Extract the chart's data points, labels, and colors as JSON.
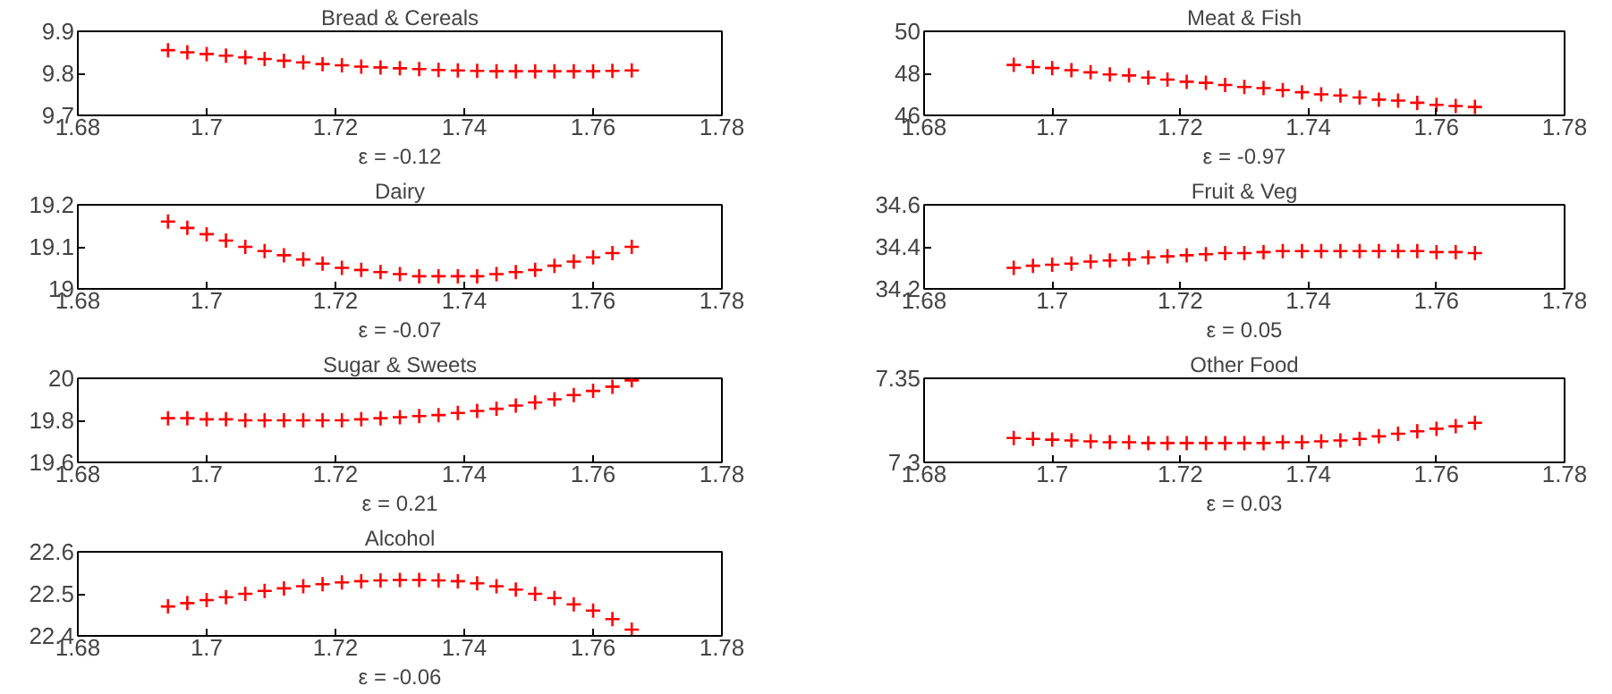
{
  "chart_data": [
    {
      "type": "scatter",
      "title": "Bread & Cereals",
      "xlabel": "ε = -0.12",
      "color": "#ff0000",
      "marker": "cross",
      "grid": false,
      "xlim": [
        1.68,
        1.78
      ],
      "xticks": [
        1.68,
        1.7,
        1.72,
        1.74,
        1.76,
        1.78
      ],
      "ylim": [
        9.7,
        9.9
      ],
      "yticks": [
        9.7,
        9.8,
        9.9
      ],
      "x": [
        1.694,
        1.697,
        1.7,
        1.703,
        1.706,
        1.709,
        1.712,
        1.715,
        1.718,
        1.721,
        1.724,
        1.727,
        1.73,
        1.733,
        1.736,
        1.739,
        1.742,
        1.745,
        1.748,
        1.751,
        1.754,
        1.757,
        1.76,
        1.763,
        1.766
      ],
      "values": [
        9.855,
        9.85,
        9.846,
        9.842,
        9.838,
        9.834,
        9.83,
        9.826,
        9.822,
        9.819,
        9.816,
        9.814,
        9.812,
        9.81,
        9.808,
        9.807,
        9.806,
        9.805,
        9.805,
        9.805,
        9.805,
        9.805,
        9.805,
        9.806,
        9.807
      ]
    },
    {
      "type": "scatter",
      "title": "Meat & Fish",
      "xlabel": "ε = -0.97",
      "color": "#ff0000",
      "marker": "cross",
      "grid": false,
      "xlim": [
        1.68,
        1.78
      ],
      "xticks": [
        1.68,
        1.7,
        1.72,
        1.74,
        1.76,
        1.78
      ],
      "ylim": [
        46,
        50
      ],
      "yticks": [
        46,
        48,
        50
      ],
      "x": [
        1.694,
        1.697,
        1.7,
        1.703,
        1.706,
        1.709,
        1.712,
        1.715,
        1.718,
        1.721,
        1.724,
        1.727,
        1.73,
        1.733,
        1.736,
        1.739,
        1.742,
        1.745,
        1.748,
        1.751,
        1.754,
        1.757,
        1.76,
        1.763,
        1.766
      ],
      "values": [
        48.4,
        48.3,
        48.25,
        48.15,
        48.05,
        47.95,
        47.9,
        47.8,
        47.7,
        47.6,
        47.55,
        47.45,
        47.35,
        47.3,
        47.2,
        47.1,
        47.0,
        46.95,
        46.85,
        46.75,
        46.7,
        46.6,
        46.5,
        46.45,
        46.4
      ]
    },
    {
      "type": "scatter",
      "title": "Dairy",
      "xlabel": "ε = -0.07",
      "color": "#ff0000",
      "marker": "cross",
      "grid": false,
      "xlim": [
        1.68,
        1.78
      ],
      "xticks": [
        1.68,
        1.7,
        1.72,
        1.74,
        1.76,
        1.78
      ],
      "ylim": [
        19,
        19.2
      ],
      "yticks": [
        19,
        19.1,
        19.2
      ],
      "x": [
        1.694,
        1.697,
        1.7,
        1.703,
        1.706,
        1.709,
        1.712,
        1.715,
        1.718,
        1.721,
        1.724,
        1.727,
        1.73,
        1.733,
        1.736,
        1.739,
        1.742,
        1.745,
        1.748,
        1.751,
        1.754,
        1.757,
        1.76,
        1.763,
        1.766
      ],
      "values": [
        19.16,
        19.145,
        19.13,
        19.115,
        19.1,
        19.09,
        19.08,
        19.07,
        19.06,
        19.05,
        19.045,
        19.04,
        19.035,
        19.03,
        19.03,
        19.03,
        19.03,
        19.035,
        19.04,
        19.045,
        19.055,
        19.065,
        19.075,
        19.085,
        19.1
      ]
    },
    {
      "type": "scatter",
      "title": "Fruit & Veg",
      "xlabel": "ε = 0.05",
      "color": "#ff0000",
      "marker": "cross",
      "grid": false,
      "xlim": [
        1.68,
        1.78
      ],
      "xticks": [
        1.68,
        1.7,
        1.72,
        1.74,
        1.76,
        1.78
      ],
      "ylim": [
        34.2,
        34.6
      ],
      "yticks": [
        34.2,
        34.4,
        34.6
      ],
      "x": [
        1.694,
        1.697,
        1.7,
        1.703,
        1.706,
        1.709,
        1.712,
        1.715,
        1.718,
        1.721,
        1.724,
        1.727,
        1.73,
        1.733,
        1.736,
        1.739,
        1.742,
        1.745,
        1.748,
        1.751,
        1.754,
        1.757,
        1.76,
        1.763,
        1.766
      ],
      "values": [
        34.3,
        34.31,
        34.315,
        34.32,
        34.33,
        34.335,
        34.34,
        34.35,
        34.355,
        34.36,
        34.365,
        34.37,
        34.37,
        34.375,
        34.38,
        34.38,
        34.38,
        34.38,
        34.38,
        34.38,
        34.38,
        34.38,
        34.375,
        34.375,
        34.37
      ]
    },
    {
      "type": "scatter",
      "title": "Sugar & Sweets",
      "xlabel": "ε = 0.21",
      "color": "#ff0000",
      "marker": "cross",
      "grid": false,
      "xlim": [
        1.68,
        1.78
      ],
      "xticks": [
        1.68,
        1.7,
        1.72,
        1.74,
        1.76,
        1.78
      ],
      "ylim": [
        19.6,
        20
      ],
      "yticks": [
        19.6,
        19.8,
        20
      ],
      "x": [
        1.694,
        1.697,
        1.7,
        1.703,
        1.706,
        1.709,
        1.712,
        1.715,
        1.718,
        1.721,
        1.724,
        1.727,
        1.73,
        1.733,
        1.736,
        1.739,
        1.742,
        1.745,
        1.748,
        1.751,
        1.754,
        1.757,
        1.76,
        1.763,
        1.766
      ],
      "values": [
        19.81,
        19.81,
        19.805,
        19.805,
        19.8,
        19.8,
        19.8,
        19.8,
        19.8,
        19.8,
        19.805,
        19.81,
        19.815,
        19.82,
        19.825,
        19.835,
        19.845,
        19.855,
        19.87,
        19.885,
        19.9,
        19.92,
        19.94,
        19.96,
        19.99
      ]
    },
    {
      "type": "scatter",
      "title": "Other Food",
      "xlabel": "ε = 0.03",
      "color": "#ff0000",
      "marker": "cross",
      "grid": false,
      "xlim": [
        1.68,
        1.78
      ],
      "xticks": [
        1.68,
        1.7,
        1.72,
        1.74,
        1.76,
        1.78
      ],
      "ylim": [
        7.3,
        7.35
      ],
      "yticks": [
        7.3,
        7.35
      ],
      "x": [
        1.694,
        1.697,
        1.7,
        1.703,
        1.706,
        1.709,
        1.712,
        1.715,
        1.718,
        1.721,
        1.724,
        1.727,
        1.73,
        1.733,
        1.736,
        1.739,
        1.742,
        1.745,
        1.748,
        1.751,
        1.754,
        1.757,
        1.76,
        1.763,
        1.766
      ],
      "values": [
        7.3145,
        7.314,
        7.3135,
        7.313,
        7.3125,
        7.312,
        7.312,
        7.3115,
        7.3115,
        7.3115,
        7.3115,
        7.3115,
        7.3115,
        7.3115,
        7.312,
        7.312,
        7.3125,
        7.313,
        7.314,
        7.3155,
        7.317,
        7.3185,
        7.32,
        7.3215,
        7.3235
      ]
    },
    {
      "type": "scatter",
      "title": "Alcohol",
      "xlabel": "ε = -0.06",
      "color": "#ff0000",
      "marker": "cross",
      "grid": false,
      "xlim": [
        1.68,
        1.78
      ],
      "xticks": [
        1.68,
        1.7,
        1.72,
        1.74,
        1.76,
        1.78
      ],
      "ylim": [
        22.4,
        22.6
      ],
      "yticks": [
        22.4,
        22.5,
        22.6
      ],
      "x": [
        1.694,
        1.697,
        1.7,
        1.703,
        1.706,
        1.709,
        1.712,
        1.715,
        1.718,
        1.721,
        1.724,
        1.727,
        1.73,
        1.733,
        1.736,
        1.739,
        1.742,
        1.745,
        1.748,
        1.751,
        1.754,
        1.757,
        1.76,
        1.763,
        1.766
      ],
      "values": [
        22.47,
        22.478,
        22.485,
        22.492,
        22.5,
        22.507,
        22.513,
        22.518,
        22.523,
        22.527,
        22.53,
        22.532,
        22.533,
        22.533,
        22.532,
        22.53,
        22.525,
        22.518,
        22.51,
        22.5,
        22.49,
        22.475,
        22.46,
        22.44,
        22.415
      ]
    }
  ]
}
